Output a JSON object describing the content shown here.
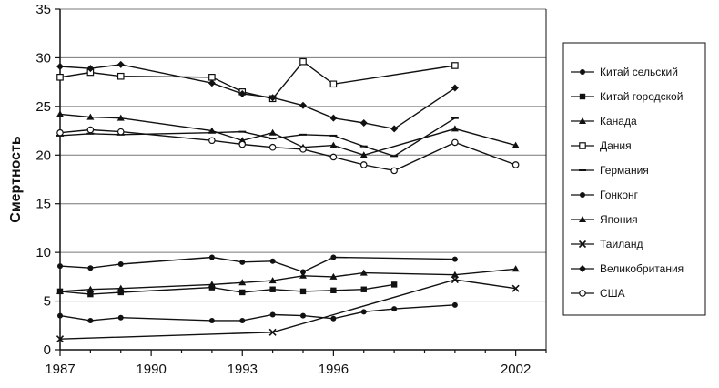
{
  "chart_data": {
    "type": "line",
    "title": "",
    "xlabel": "",
    "ylabel": "Смертность",
    "xlim": [
      1987,
      2003
    ],
    "ylim": [
      0,
      35
    ],
    "xticks": [
      "1987",
      "1990",
      "1993",
      "1996",
      "2002"
    ],
    "yticks": [
      "0",
      "5",
      "10",
      "15",
      "20",
      "25",
      "30",
      "35"
    ],
    "grid": "horizontal",
    "legend_position": "right",
    "series": [
      {
        "name": "Китай сельский",
        "marker": "dot",
        "x": [
          1987,
          1988,
          1989,
          1992,
          1993,
          1994,
          1995,
          1996,
          1997,
          1998,
          2000
        ],
        "y": [
          3.5,
          3.0,
          3.3,
          3.0,
          3.0,
          3.6,
          3.5,
          3.2,
          3.9,
          4.2,
          4.6
        ]
      },
      {
        "name": "Китай городской",
        "marker": "square",
        "x": [
          1987,
          1988,
          1989,
          1992,
          1993,
          1994,
          1995,
          1996,
          1997,
          1998
        ],
        "y": [
          6.0,
          5.7,
          5.9,
          6.4,
          5.9,
          6.2,
          6.0,
          6.1,
          6.2,
          6.7
        ]
      },
      {
        "name": "Канада",
        "marker": "triangle",
        "x": [
          1987,
          1988,
          1989,
          1992,
          1993,
          1994,
          1995,
          1996,
          1997,
          2000,
          2002
        ],
        "y": [
          24.2,
          23.9,
          23.8,
          22.5,
          21.5,
          22.3,
          20.8,
          21.0,
          20.0,
          22.7,
          21.0
        ]
      },
      {
        "name": "Дания",
        "marker": "open-square",
        "x": [
          1987,
          1988,
          1989,
          1992,
          1993,
          1994,
          1995,
          1996,
          2000
        ],
        "y": [
          28.0,
          28.5,
          28.1,
          28.0,
          26.5,
          25.8,
          29.6,
          27.3,
          29.2
        ]
      },
      {
        "name": "Германия",
        "marker": "dash",
        "x": [
          1987,
          1988,
          1989,
          1992,
          1993,
          1994,
          1995,
          1996,
          1997,
          1998,
          2000
        ],
        "y": [
          22.0,
          22.2,
          22.1,
          22.3,
          22.4,
          21.7,
          22.1,
          22.0,
          20.9,
          19.9,
          23.8
        ]
      },
      {
        "name": "Гонконг",
        "marker": "dot",
        "x": [
          1987,
          1988,
          1989,
          1992,
          1993,
          1994,
          1995,
          1996,
          2000
        ],
        "y": [
          8.6,
          8.4,
          8.8,
          9.5,
          9.0,
          9.1,
          8.0,
          9.5,
          9.3
        ]
      },
      {
        "name": "Япония",
        "marker": "triangle",
        "x": [
          1987,
          1988,
          1989,
          1992,
          1993,
          1994,
          1995,
          1996,
          1997,
          2000,
          2002
        ],
        "y": [
          6.0,
          6.2,
          6.3,
          6.7,
          6.9,
          7.1,
          7.6,
          7.5,
          7.9,
          7.7,
          8.3
        ]
      },
      {
        "name": "Таиланд",
        "marker": "x",
        "x": [
          1987,
          1994,
          2000,
          2002
        ],
        "y": [
          1.1,
          1.8,
          7.2,
          6.3
        ]
      },
      {
        "name": "Великобритания",
        "marker": "diamond",
        "x": [
          1987,
          1988,
          1989,
          1992,
          1993,
          1994,
          1995,
          1996,
          1997,
          1998,
          2000
        ],
        "y": [
          29.1,
          28.9,
          29.3,
          27.4,
          26.3,
          25.9,
          25.1,
          23.8,
          23.3,
          22.7,
          26.9
        ]
      },
      {
        "name": "США",
        "marker": "open-circle",
        "x": [
          1987,
          1988,
          1989,
          1992,
          1993,
          1994,
          1995,
          1996,
          1997,
          1998,
          2000,
          2002
        ],
        "y": [
          22.3,
          22.6,
          22.4,
          21.5,
          21.1,
          20.8,
          20.6,
          19.8,
          19.0,
          18.4,
          21.3,
          19.0
        ]
      }
    ]
  }
}
